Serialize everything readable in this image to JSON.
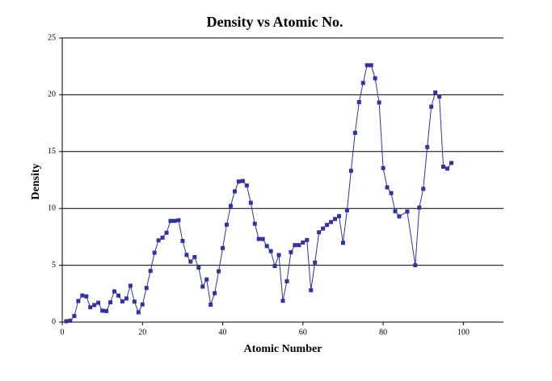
{
  "chart_data": {
    "type": "line",
    "title": "Density vs Atomic No.",
    "x_label": "Atomic Number",
    "y_label": "Density",
    "x": [
      1,
      2,
      3,
      4,
      5,
      6,
      7,
      8,
      9,
      10,
      11,
      12,
      13,
      14,
      15,
      16,
      17,
      18,
      19,
      20,
      21,
      22,
      23,
      24,
      25,
      26,
      27,
      28,
      29,
      30,
      31,
      32,
      33,
      34,
      35,
      36,
      37,
      38,
      39,
      40,
      41,
      42,
      43,
      44,
      45,
      46,
      47,
      48,
      49,
      50,
      51,
      52,
      53,
      54,
      55,
      56,
      57,
      58,
      59,
      60,
      61,
      62,
      63,
      64,
      65,
      66,
      67,
      68,
      69,
      70,
      71,
      72,
      73,
      74,
      75,
      76,
      77,
      78,
      79,
      80,
      81,
      82,
      83,
      84,
      86,
      88,
      89,
      90,
      91,
      92,
      93,
      94,
      95,
      96,
      97
    ],
    "values": [
      0.07,
      0.12,
      0.53,
      1.85,
      2.34,
      2.26,
      1.3,
      1.5,
      1.7,
      1.0,
      0.97,
      1.74,
      2.7,
      2.33,
      1.82,
      2.07,
      3.2,
      1.8,
      0.86,
      1.55,
      3.0,
      4.5,
      6.1,
      7.19,
      7.43,
      7.86,
      8.9,
      8.9,
      8.96,
      7.14,
      5.91,
      5.32,
      5.72,
      4.79,
      3.12,
      3.75,
      1.53,
      2.54,
      4.47,
      6.51,
      8.57,
      10.22,
      11.5,
      12.37,
      12.41,
      12.02,
      10.5,
      8.65,
      7.31,
      7.31,
      6.69,
      6.24,
      4.93,
      5.9,
      1.87,
      3.59,
      6.15,
      6.77,
      6.77,
      7.0,
      7.22,
      2.8,
      5.24,
      7.9,
      8.23,
      8.55,
      8.8,
      9.07,
      9.32,
      6.97,
      9.84,
      13.31,
      16.65,
      19.35,
      21.04,
      22.6,
      22.6,
      21.45,
      19.32,
      13.55,
      11.85,
      11.35,
      9.75,
      9.3,
      9.73,
      5.0,
      10.07,
      11.72,
      15.4,
      18.95,
      20.2,
      19.84,
      13.67,
      13.5,
      14.0
    ],
    "color": "#333399",
    "xlim": [
      0,
      110
    ],
    "ylim": [
      0,
      25
    ],
    "xticks": [
      0,
      20,
      40,
      60,
      80,
      100
    ],
    "yticks": [
      0,
      5,
      10,
      15,
      20,
      25
    ],
    "grid": true
  }
}
